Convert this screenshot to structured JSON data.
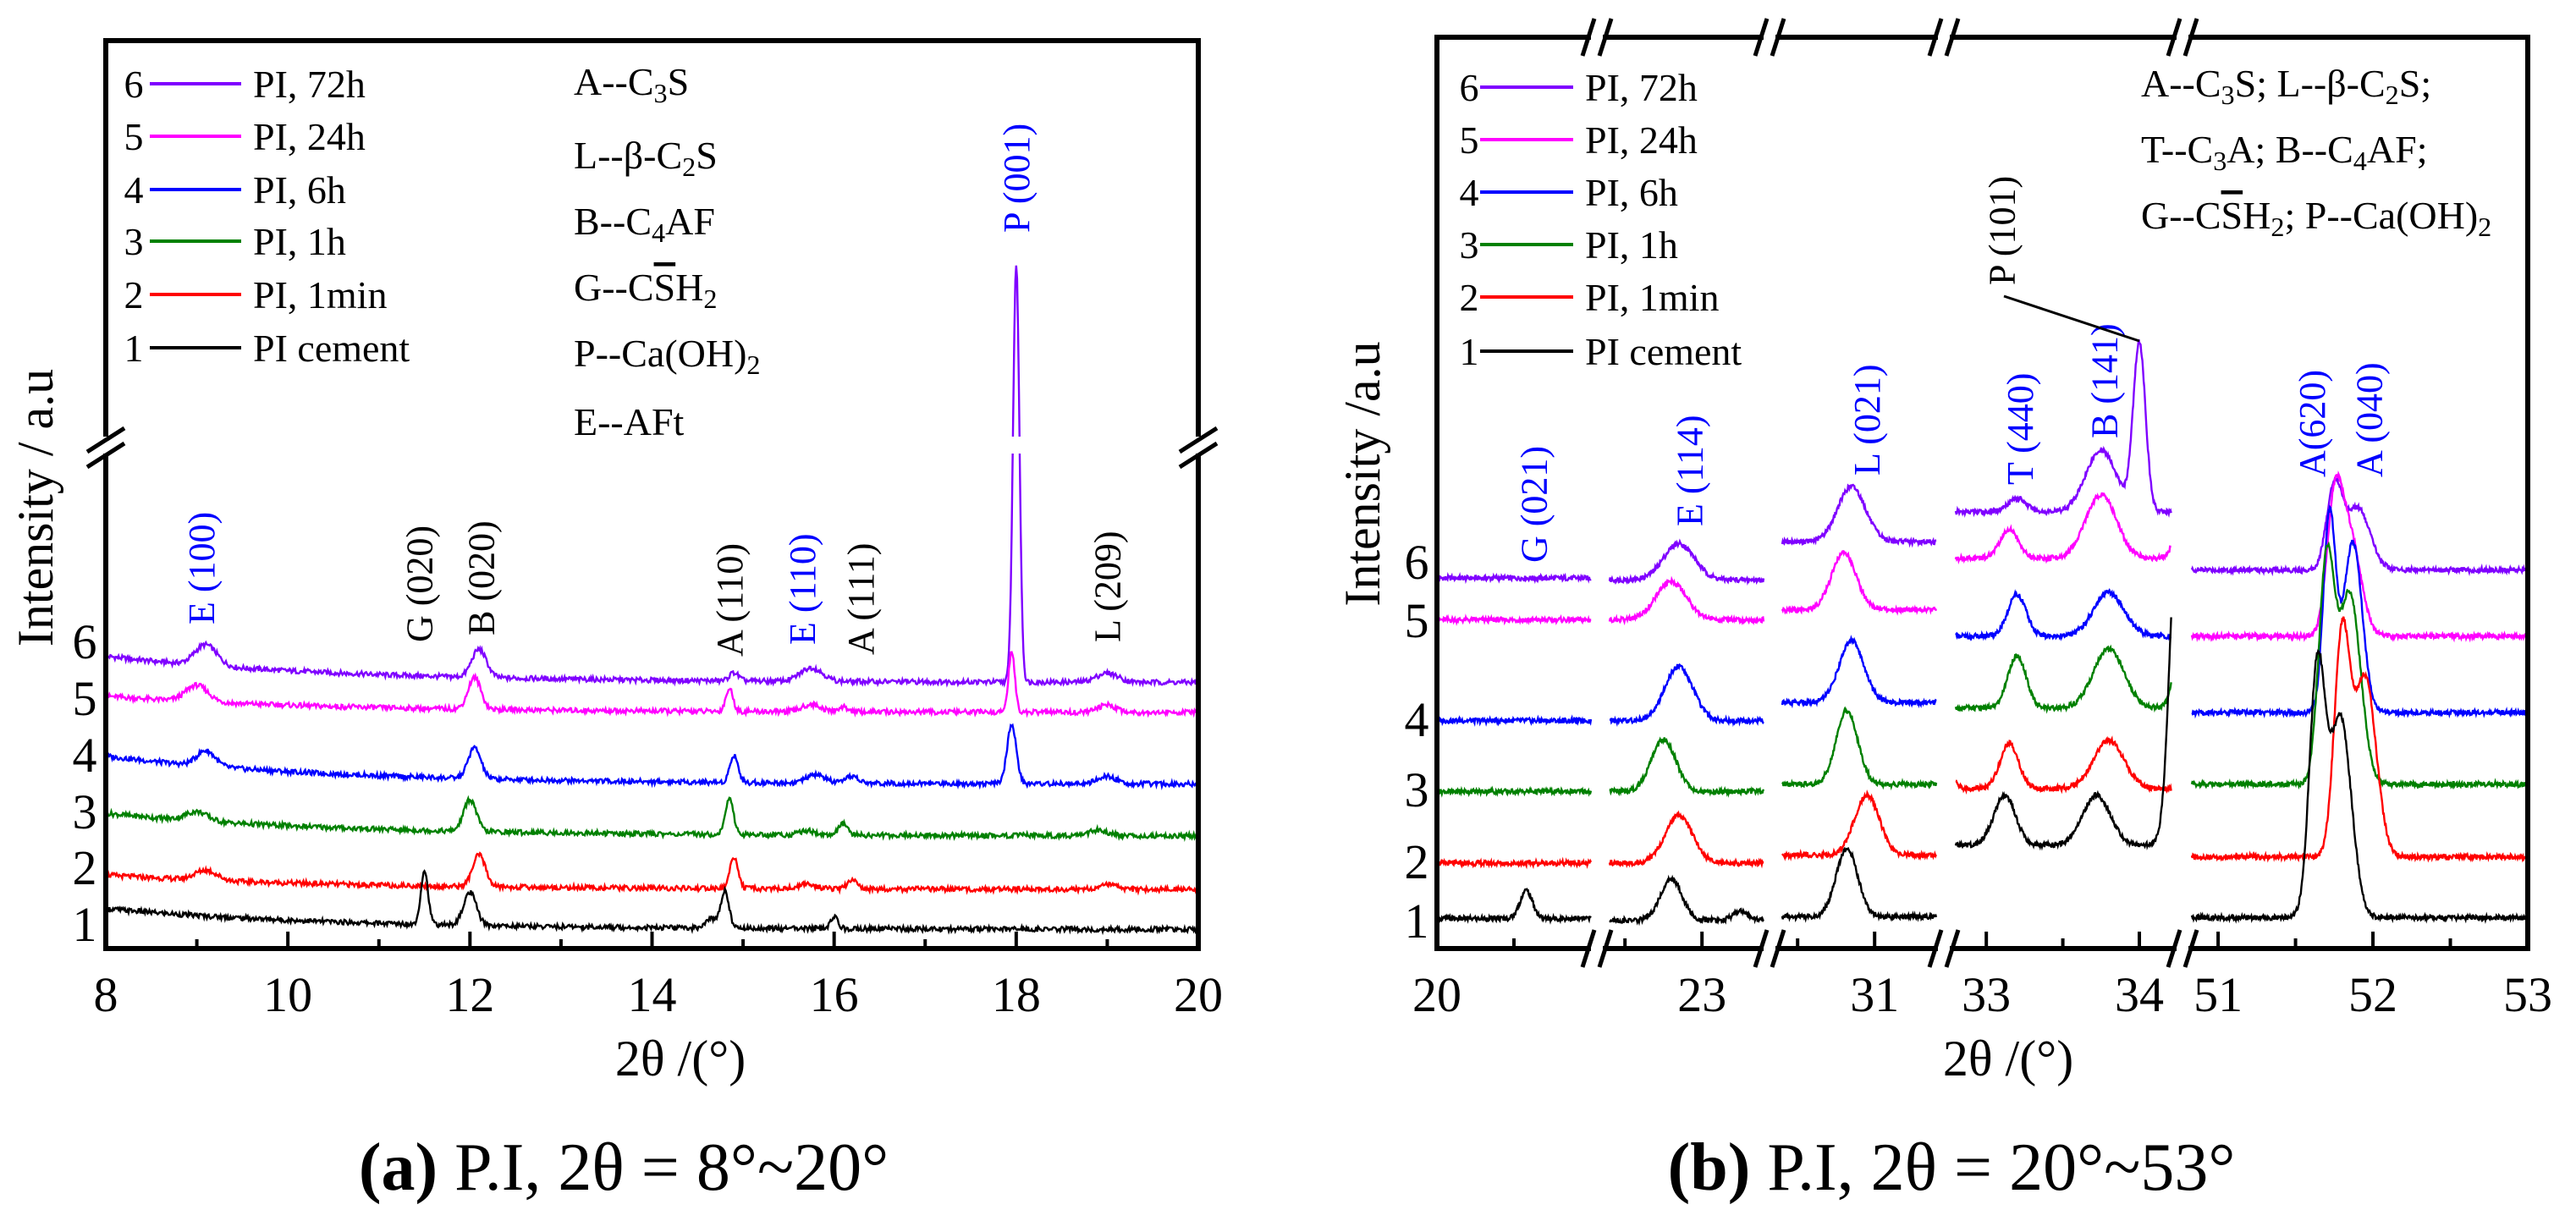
{
  "chart_data": [
    {
      "type": "line",
      "caption_label": "(a)",
      "caption_text": " P.I, 2θ = 8°~20°",
      "xlabel": "2θ /(°)",
      "ylabel": "Intensity / a.u",
      "xlim": [
        8,
        20
      ],
      "xticks_major": [
        8,
        10,
        12,
        14,
        16,
        18,
        20
      ],
      "xticks_minor": [
        9,
        11,
        13,
        15,
        17,
        19
      ],
      "y_tick_labels": [
        "1",
        "2",
        "3",
        "4",
        "5",
        "6"
      ],
      "y_axis_broken": true,
      "grid": false,
      "legend_placement": "top-left",
      "compound_key": [
        [
          {
            "t": "A--C"
          },
          {
            "t": "3",
            "sub": true
          },
          {
            "t": "S"
          }
        ],
        [
          {
            "t": "L--β-C"
          },
          {
            "t": "2",
            "sub": true
          },
          {
            "t": "S"
          }
        ],
        [
          {
            "t": "B--C"
          },
          {
            "t": "4",
            "sub": true
          },
          {
            "t": "AF"
          }
        ],
        [
          {
            "t": "G--C"
          },
          {
            "t": "S",
            "over": true
          },
          {
            "t": "H"
          },
          {
            "t": "2",
            "sub": true
          }
        ],
        [
          {
            "t": "P--Ca(OH)"
          },
          {
            "t": "2",
            "sub": true
          }
        ],
        [
          {
            "t": "E--AFt"
          }
        ]
      ],
      "peak_labels": [
        {
          "text": "E (100)",
          "x": 9.05,
          "color": "#0000ff"
        },
        {
          "text": "G (020)",
          "x": 11.5,
          "color": "#000000"
        },
        {
          "text": "B (020)",
          "x": 12.05,
          "color": "#000000"
        },
        {
          "text": "A (110)",
          "x": 14.85,
          "color": "#000000"
        },
        {
          "text": "E (110)",
          "x": 15.78,
          "color": "#0000ff"
        },
        {
          "text": "A (111)",
          "x": 16.05,
          "color": "#000000"
        },
        {
          "text": "P (001)",
          "x": 18.0,
          "color": "#0000ff"
        },
        {
          "text": "L (209)",
          "x": 19.0,
          "color": "#000000"
        }
      ],
      "series": [
        {
          "index": "6",
          "name": "PI, 72h",
          "color": "#7f00ff",
          "baseline": [
            32.2,
            29.3
          ],
          "peaks": [
            [
              9.1,
              2.3,
              0.12
            ],
            [
              12.1,
              3.1,
              0.08
            ],
            [
              14.9,
              0.9,
              0.05
            ],
            [
              15.75,
              1.5,
              0.12
            ],
            [
              18.0,
              46,
              0.035
            ],
            [
              19.0,
              1.0,
              0.12
            ]
          ]
        },
        {
          "index": "5",
          "name": "PI, 24h",
          "color": "#ff00ff",
          "baseline": [
            27.8,
            26.0
          ],
          "peaks": [
            [
              9.0,
              1.8,
              0.12
            ],
            [
              12.05,
              3.5,
              0.07
            ],
            [
              14.85,
              2.5,
              0.04
            ],
            [
              15.75,
              0.8,
              0.1
            ],
            [
              16.1,
              0.5,
              0.06
            ],
            [
              17.95,
              6.6,
              0.035
            ],
            [
              19.0,
              0.8,
              0.1
            ]
          ]
        },
        {
          "index": "4",
          "name": "PI, 6h",
          "color": "#0000ff",
          "baseline": [
            21.2,
            18.1
          ],
          "peaks": [
            [
              9.1,
              1.7,
              0.1
            ],
            [
              12.05,
              3.4,
              0.07
            ],
            [
              14.9,
              3.0,
              0.045
            ],
            [
              15.8,
              0.9,
              0.1
            ],
            [
              16.2,
              0.8,
              0.06
            ],
            [
              17.95,
              6.5,
              0.05
            ],
            [
              19.0,
              0.8,
              0.1
            ]
          ]
        },
        {
          "index": "3",
          "name": "PI, 1h",
          "color": "#008000",
          "baseline": [
            14.9,
            12.4
          ],
          "peaks": [
            [
              9.0,
              1.0,
              0.12
            ],
            [
              12.0,
              3.5,
              0.07
            ],
            [
              14.85,
              3.9,
              0.045
            ],
            [
              15.7,
              0.5,
              0.08
            ],
            [
              16.1,
              1.2,
              0.05
            ],
            [
              18.9,
              0.6,
              0.1
            ]
          ]
        },
        {
          "index": "2",
          "name": "PI, 1min",
          "color": "#ff0000",
          "baseline": [
            8.1,
            6.5
          ],
          "peaks": [
            [
              9.1,
              1.1,
              0.12
            ],
            [
              12.1,
              3.5,
              0.07
            ],
            [
              14.9,
              3.5,
              0.045
            ],
            [
              15.7,
              0.5,
              0.1
            ],
            [
              16.2,
              1.1,
              0.05
            ],
            [
              19.0,
              0.5,
              0.1
            ]
          ]
        },
        {
          "index": "1",
          "name": "PI cement",
          "color": "#000000",
          "baseline": [
            4.4,
            2.1
          ],
          "peaks": [
            [
              11.5,
              5.9,
              0.04
            ],
            [
              12.0,
              3.6,
              0.07
            ],
            [
              14.8,
              4.1,
              0.045
            ],
            [
              14.65,
              1.0,
              0.06
            ],
            [
              16.0,
              1.3,
              0.04
            ]
          ]
        }
      ]
    },
    {
      "type": "line",
      "caption_label": "(b)",
      "caption_text": " P.I, 2θ = 20°~53°",
      "xlabel": "2θ /(°)",
      "ylabel": "Intensity /a.u",
      "x_axis_broken": true,
      "segments": [
        {
          "range": [
            20,
            21
          ],
          "ticks": [
            {
              "v": 20,
              "label": "20"
            },
            {
              "v": 20.5
            }
          ]
        },
        {
          "range": [
            22.4,
            23.4
          ],
          "ticks": [
            {
              "v": 22.5
            },
            {
              "v": 23,
              "label": "23"
            }
          ]
        },
        {
          "range": [
            30.4,
            31.4
          ],
          "ticks": [
            {
              "v": 30.5
            },
            {
              "v": 31,
              "label": "31"
            }
          ]
        },
        {
          "range": [
            32.8,
            34.21
          ],
          "ticks": [
            {
              "v": 33,
              "label": "33"
            },
            {
              "v": 33.5
            },
            {
              "v": 34,
              "label": "34"
            }
          ]
        },
        {
          "range": [
            50.83,
            53
          ],
          "ticks": [
            {
              "v": 51,
              "label": "51"
            },
            {
              "v": 51.5
            },
            {
              "v": 52,
              "label": "52"
            },
            {
              "v": 52.5
            },
            {
              "v": 53,
              "label": "53"
            }
          ]
        }
      ],
      "y_tick_labels": [
        "1",
        "2",
        "3",
        "4",
        "5",
        "6"
      ],
      "grid": false,
      "legend_placement": "top-left",
      "compound_key": [
        [
          {
            "t": "A--C"
          },
          {
            "t": "3",
            "sub": true
          },
          {
            "t": "S; L--β-C"
          },
          {
            "t": "2",
            "sub": true
          },
          {
            "t": "S;"
          }
        ],
        [
          {
            "t": "T--C"
          },
          {
            "t": "3",
            "sub": true
          },
          {
            "t": "A; B--C"
          },
          {
            "t": "4",
            "sub": true
          },
          {
            "t": "AF;"
          }
        ],
        [
          {
            "t": "G--C"
          },
          {
            "t": "S",
            "over": true
          },
          {
            "t": "H"
          },
          {
            "t": "2",
            "sub": true
          },
          {
            "t": "; P--Ca(OH)"
          },
          {
            "t": "2",
            "sub": true
          }
        ]
      ],
      "peak_labels": [
        {
          "text": "G (021)",
          "x": 20.63,
          "color": "#0000ff"
        },
        {
          "text": "E (114)",
          "x": 22.92,
          "color": "#0000ff"
        },
        {
          "text": "L (021)",
          "x": 30.95,
          "color": "#0000ff"
        },
        {
          "text": "T (440)",
          "x": 33.22,
          "color": "#0000ff"
        },
        {
          "text": "B (141)",
          "x": 33.77,
          "color": "#0000ff"
        },
        {
          "text": "P (101)",
          "x": 33.1,
          "color": "#000000"
        },
        {
          "text": "A(620)",
          "x": 51.66,
          "color": "#0000ff"
        },
        {
          "text": "A (040)",
          "x": 51.92,
          "color": "#0000ff"
        }
      ],
      "series": [
        {
          "index": "6",
          "name": "PI, 72h",
          "color": "#7f00ff",
          "baselines": [
            40.8,
            40.6,
            44.8,
            48.1,
            41.7
          ],
          "peaks": [
            [
              22.85,
              4.0,
              0.1
            ],
            [
              30.85,
              6.1,
              0.09
            ],
            [
              33.2,
              1.5,
              0.06
            ],
            [
              33.75,
              6.8,
              0.1
            ],
            [
              34.0,
              18.5,
              0.04
            ],
            [
              51.75,
              8.8,
              0.05
            ],
            [
              51.9,
              6.8,
              0.08
            ]
          ]
        },
        {
          "index": "5",
          "name": "PI, 24h",
          "color": "#ff00ff",
          "baselines": [
            36.2,
            36.2,
            37.3,
            43.0,
            34.4
          ],
          "peaks": [
            [
              22.8,
              4.2,
              0.1
            ],
            [
              30.8,
              6.3,
              0.08
            ],
            [
              33.15,
              3.2,
              0.06
            ],
            [
              33.75,
              7.0,
              0.1
            ],
            [
              34.3,
              8,
              0.05
            ],
            [
              51.75,
              13,
              0.05
            ],
            [
              51.85,
              11,
              0.07
            ]
          ]
        },
        {
          "index": "4",
          "name": "PI, 6h",
          "color": "#0000ff",
          "baselines": [
            25.1,
            25.1,
            27.1,
            34.4,
            26.0
          ],
          "peaks": [
            [
              22.85,
              6.0,
              0.09
            ],
            [
              30.85,
              6.8,
              0.08
            ],
            [
              33.2,
              4.6,
              0.06
            ],
            [
              33.8,
              4.8,
              0.1
            ],
            [
              51.72,
              21.6,
              0.04
            ],
            [
              51.87,
              18.8,
              0.06
            ]
          ]
        },
        {
          "index": "3",
          "name": "PI, 1h",
          "color": "#008000",
          "baselines": [
            17.3,
            17.3,
            18.1,
            26.5,
            18.1
          ],
          "peaks": [
            [
              22.75,
              5.7,
              0.08
            ],
            [
              30.82,
              8.1,
              0.07
            ],
            [
              33.2,
              5.7,
              0.06
            ],
            [
              33.8,
              6.5,
              0.1
            ],
            [
              34.3,
              16,
              0.05
            ],
            [
              51.7,
              24,
              0.05
            ],
            [
              51.85,
              21,
              0.07
            ]
          ]
        },
        {
          "index": "2",
          "name": "PI, 1min",
          "color": "#ff0000",
          "baselines": [
            9.4,
            9.4,
            10.3,
            17.6,
            10.1
          ],
          "peaks": [
            [
              22.85,
              5.2,
              0.09
            ],
            [
              30.95,
              6.6,
              0.08
            ],
            [
              32.7,
              8,
              0.05
            ],
            [
              33.15,
              5.0,
              0.06
            ],
            [
              33.8,
              5.3,
              0.1
            ],
            [
              51.8,
              24,
              0.05
            ],
            [
              51.95,
              19.8,
              0.07
            ]
          ]
        },
        {
          "index": "1",
          "name": "PI cement",
          "color": "#000000",
          "baselines": [
            3.3,
            3.1,
            3.5,
            11.4,
            3.4
          ],
          "peaks": [
            [
              20.58,
              3.1,
              0.04
            ],
            [
              22.8,
              4.6,
              0.07
            ],
            [
              23.25,
              1.0,
              0.05
            ],
            [
              30.82,
              7.5,
              0.07
            ],
            [
              33.12,
              5.5,
              0.07
            ],
            [
              33.72,
              5.5,
              0.09
            ],
            [
              34.25,
              36,
              0.05
            ],
            [
              51.64,
              27,
              0.05
            ],
            [
              51.79,
              22,
              0.07
            ]
          ]
        }
      ]
    }
  ]
}
